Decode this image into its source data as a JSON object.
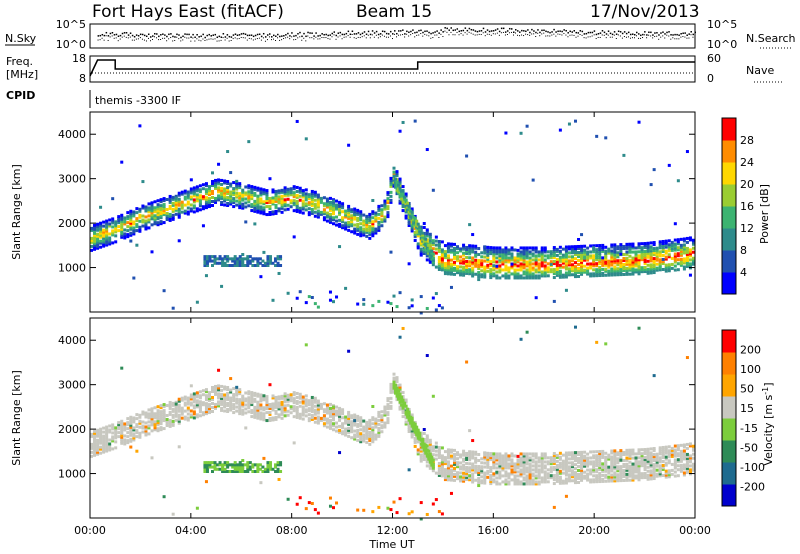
{
  "header": {
    "site": "Fort Hays East (fitACF)",
    "beam": "Beam 15",
    "date": "17/Nov/2013"
  },
  "noise_panel": {
    "left_label": "N.Sky",
    "right_label": "N.Search",
    "left_ticks": [
      "10^5",
      "10^0"
    ],
    "right_ticks": [
      "10^5",
      "10^0"
    ]
  },
  "freq_panel": {
    "left_label_line1": "Freq.",
    "left_label_line2": "[MHz]",
    "right_label": "Nave",
    "left_ticks": [
      "18",
      "8"
    ],
    "right_ticks": [
      "60",
      "0"
    ]
  },
  "cpid": {
    "label": "CPID",
    "value": "themis -3300 IF"
  },
  "time_axis": {
    "label": "Time UT",
    "ticks": [
      "00:00",
      "04:00",
      "08:00",
      "12:00",
      "16:00",
      "20:00",
      "00:00"
    ]
  },
  "chart_data": [
    {
      "type": "heatmap",
      "title": "",
      "xlabel": "",
      "ylabel": "Slant Range [km]",
      "x_range_hours": [
        0,
        24
      ],
      "ylim": [
        0,
        4500
      ],
      "y_ticks": [
        "1000",
        "2000",
        "3000",
        "4000"
      ],
      "colorbar": {
        "label": "Power [dB]",
        "ticks": [
          "28",
          "24",
          "20",
          "16",
          "12",
          "8",
          "4"
        ],
        "range": [
          0,
          30
        ],
        "colors": [
          "#0000ff",
          "#2050b0",
          "#2e8b8b",
          "#3cb371",
          "#9acd32",
          "#ffd700",
          "#ff8c00",
          "#ff0000"
        ]
      }
    },
    {
      "type": "heatmap",
      "title": "",
      "xlabel": "Time UT",
      "ylabel": "Slant Range [km]",
      "x_range_hours": [
        0,
        24
      ],
      "ylim": [
        0,
        4500
      ],
      "y_ticks": [
        "1000",
        "2000",
        "3000",
        "4000"
      ],
      "colorbar": {
        "label": "Velocity [m s^-1]",
        "ticks": [
          "200",
          "100",
          "50",
          "15",
          "-15",
          "-50",
          "-100",
          "-200"
        ],
        "colors": [
          "#0000cd",
          "#1e6b8f",
          "#2e8b57",
          "#7ccd3c",
          "#c8c8c0",
          "#ffa500",
          "#ff8000",
          "#ff0000"
        ]
      }
    }
  ],
  "band_features": {
    "main_band_km": [
      [
        0,
        1700
      ],
      [
        1,
        1900
      ],
      [
        2,
        2150
      ],
      [
        3,
        2350
      ],
      [
        4,
        2550
      ],
      [
        5,
        2750
      ],
      [
        6,
        2650
      ],
      [
        7,
        2500
      ],
      [
        8,
        2600
      ],
      [
        9,
        2450
      ],
      [
        10,
        2200
      ],
      [
        11,
        1950
      ],
      [
        11.7,
        2300
      ],
      [
        12,
        3100
      ],
      [
        13,
        1700
      ],
      [
        14,
        1250
      ],
      [
        16,
        1150
      ],
      [
        18,
        1150
      ],
      [
        20,
        1200
      ],
      [
        22,
        1250
      ],
      [
        23.5,
        1350
      ],
      [
        24,
        1400
      ]
    ],
    "secondary_band": {
      "start_h": 4.5,
      "end_h": 7.5,
      "range_km": 1200
    },
    "ionospheric_streak": {
      "start_h": 12.0,
      "end_h": 13.6,
      "start_km": 3000,
      "end_km": 1200
    }
  }
}
